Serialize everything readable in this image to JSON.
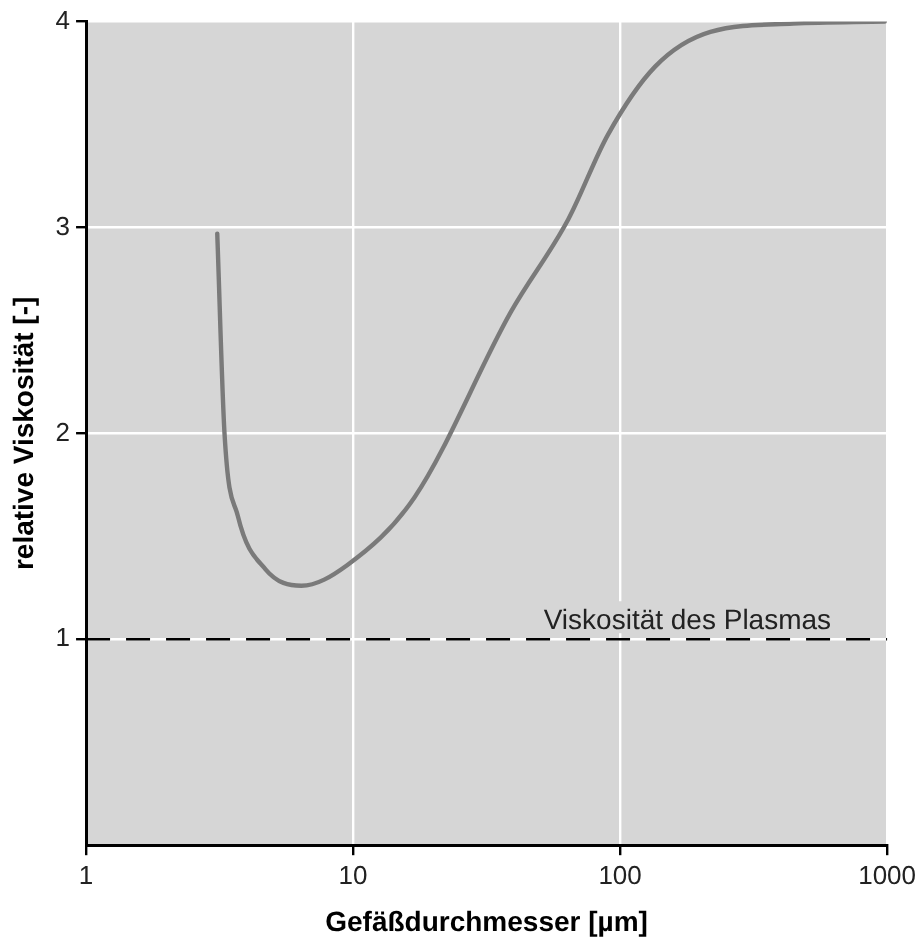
{
  "chart_data": {
    "type": "line",
    "xlabel": "Gefäßdurchmesser [µm]",
    "ylabel": "relative Viskosität [-]",
    "x": [
      3.1,
      3.3,
      3.7,
      4.7,
      6.4,
      9.5,
      17,
      39,
      64,
      90,
      135,
      218,
      445,
      980
    ],
    "series": [
      {
        "color": "#7a7a7a",
        "values": [
          2.97,
          2.0,
          1.6,
          1.34,
          1.26,
          1.36,
          1.69,
          2.59,
          3.04,
          3.45,
          3.78,
          3.95,
          3.99,
          4.0
        ]
      }
    ],
    "log": "x",
    "xlim": [
      1,
      1000
    ],
    "xticks": [
      1,
      10,
      100,
      1000
    ],
    "ylim": [
      0,
      4
    ],
    "yticks": [
      1,
      2,
      3,
      4
    ],
    "ref_lines": [
      {
        "axis": "y",
        "value": 1,
        "label": "Viskosität des Plasmas",
        "color": "#000000",
        "line_style": "dashed"
      }
    ],
    "grid": true,
    "legend": false,
    "marker": "none",
    "line_style": "solid"
  }
}
